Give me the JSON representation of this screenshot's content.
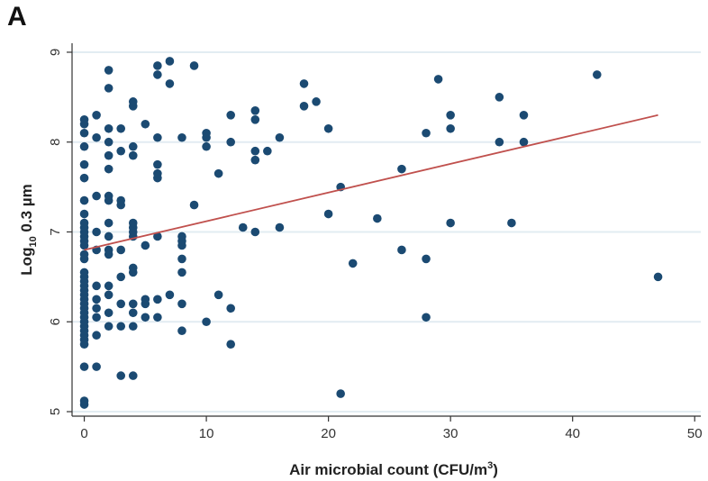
{
  "panel_label": "A",
  "chart_data": {
    "type": "scatter",
    "title": "",
    "xlabel": "Air microbial count (CFU/m",
    "xlabel_superscript": "3",
    "xlabel_suffix": ")",
    "ylabel_prefix": "Log",
    "ylabel_subscript": "10",
    "ylabel_suffix": " 0.3 µm",
    "xlim": [
      -1,
      50.5
    ],
    "ylim": [
      4.95,
      9.1
    ],
    "x_ticks": [
      0,
      10,
      20,
      30,
      40,
      50
    ],
    "y_ticks": [
      5,
      6,
      7,
      8,
      9
    ],
    "grid": "horizontal",
    "colors": {
      "points": "#1b4a72",
      "fit_line": "#c0504d",
      "grid": "#e2ecf2",
      "axis": "#333333"
    },
    "fit_line": {
      "x": [
        0,
        47
      ],
      "y": [
        6.8,
        8.3
      ]
    },
    "points": [
      [
        0,
        5.08
      ],
      [
        0,
        5.12
      ],
      [
        0,
        5.5
      ],
      [
        0,
        5.75
      ],
      [
        0,
        5.8
      ],
      [
        0,
        5.85
      ],
      [
        0,
        5.9
      ],
      [
        0,
        5.95
      ],
      [
        0,
        6.0
      ],
      [
        0,
        6.05
      ],
      [
        0,
        6.1
      ],
      [
        0,
        6.15
      ],
      [
        0,
        6.2
      ],
      [
        0,
        6.25
      ],
      [
        0,
        6.3
      ],
      [
        0,
        6.35
      ],
      [
        0,
        6.4
      ],
      [
        0,
        6.45
      ],
      [
        0,
        6.5
      ],
      [
        0,
        6.55
      ],
      [
        0,
        6.7
      ],
      [
        0,
        6.75
      ],
      [
        0,
        6.85
      ],
      [
        0,
        6.9
      ],
      [
        0,
        6.95
      ],
      [
        0,
        7.0
      ],
      [
        0,
        7.05
      ],
      [
        0,
        7.1
      ],
      [
        0,
        7.2
      ],
      [
        0,
        7.35
      ],
      [
        0,
        7.6
      ],
      [
        0,
        7.75
      ],
      [
        0,
        7.95
      ],
      [
        0,
        8.1
      ],
      [
        0,
        8.2
      ],
      [
        0,
        8.25
      ],
      [
        1,
        5.5
      ],
      [
        1,
        5.85
      ],
      [
        1,
        6.05
      ],
      [
        1,
        6.15
      ],
      [
        1,
        6.25
      ],
      [
        1,
        6.4
      ],
      [
        1,
        6.8
      ],
      [
        1,
        7.0
      ],
      [
        1,
        7.4
      ],
      [
        1,
        8.05
      ],
      [
        1,
        8.3
      ],
      [
        2,
        5.95
      ],
      [
        2,
        6.1
      ],
      [
        2,
        6.3
      ],
      [
        2,
        6.4
      ],
      [
        2,
        6.75
      ],
      [
        2,
        6.8
      ],
      [
        2,
        6.95
      ],
      [
        2,
        7.1
      ],
      [
        2,
        7.35
      ],
      [
        2,
        7.4
      ],
      [
        2,
        7.7
      ],
      [
        2,
        7.85
      ],
      [
        2,
        8.0
      ],
      [
        2,
        8.15
      ],
      [
        2,
        8.6
      ],
      [
        2,
        8.8
      ],
      [
        3,
        5.4
      ],
      [
        3,
        5.95
      ],
      [
        3,
        6.2
      ],
      [
        3,
        6.5
      ],
      [
        3,
        6.8
      ],
      [
        3,
        7.3
      ],
      [
        3,
        7.35
      ],
      [
        3,
        7.9
      ],
      [
        3,
        8.15
      ],
      [
        4,
        5.4
      ],
      [
        4,
        5.95
      ],
      [
        4,
        6.1
      ],
      [
        4,
        6.2
      ],
      [
        4,
        6.55
      ],
      [
        4,
        6.6
      ],
      [
        4,
        6.95
      ],
      [
        4,
        7.0
      ],
      [
        4,
        7.05
      ],
      [
        4,
        7.1
      ],
      [
        4,
        7.85
      ],
      [
        4,
        7.95
      ],
      [
        4,
        8.4
      ],
      [
        4,
        8.45
      ],
      [
        5,
        6.05
      ],
      [
        5,
        6.2
      ],
      [
        5,
        6.25
      ],
      [
        5,
        6.85
      ],
      [
        5,
        8.2
      ],
      [
        6,
        6.05
      ],
      [
        6,
        6.25
      ],
      [
        6,
        6.95
      ],
      [
        6,
        7.6
      ],
      [
        6,
        7.65
      ],
      [
        6,
        7.75
      ],
      [
        6,
        8.05
      ],
      [
        6,
        8.75
      ],
      [
        6,
        8.85
      ],
      [
        7,
        6.3
      ],
      [
        7,
        8.65
      ],
      [
        7,
        8.9
      ],
      [
        8,
        5.9
      ],
      [
        8,
        6.2
      ],
      [
        8,
        6.55
      ],
      [
        8,
        6.7
      ],
      [
        8,
        6.85
      ],
      [
        8,
        6.9
      ],
      [
        8,
        6.95
      ],
      [
        8,
        8.05
      ],
      [
        9,
        7.3
      ],
      [
        9,
        8.85
      ],
      [
        10,
        6.0
      ],
      [
        10,
        7.95
      ],
      [
        10,
        8.05
      ],
      [
        10,
        8.1
      ],
      [
        11,
        6.3
      ],
      [
        11,
        7.65
      ],
      [
        12,
        5.75
      ],
      [
        12,
        6.15
      ],
      [
        12,
        8.0
      ],
      [
        12,
        8.3
      ],
      [
        13,
        7.05
      ],
      [
        14,
        7.0
      ],
      [
        14,
        7.8
      ],
      [
        14,
        7.9
      ],
      [
        14,
        8.25
      ],
      [
        14,
        8.35
      ],
      [
        15,
        7.9
      ],
      [
        16,
        7.05
      ],
      [
        16,
        8.05
      ],
      [
        18,
        8.4
      ],
      [
        18,
        8.65
      ],
      [
        19,
        8.45
      ],
      [
        20,
        7.2
      ],
      [
        20,
        8.15
      ],
      [
        21,
        5.2
      ],
      [
        21,
        7.5
      ],
      [
        22,
        6.65
      ],
      [
        24,
        7.15
      ],
      [
        26,
        6.8
      ],
      [
        26,
        7.7
      ],
      [
        28,
        6.05
      ],
      [
        28,
        6.7
      ],
      [
        28,
        8.1
      ],
      [
        29,
        8.7
      ],
      [
        30,
        7.1
      ],
      [
        30,
        8.15
      ],
      [
        30,
        8.3
      ],
      [
        34,
        8.0
      ],
      [
        34,
        8.5
      ],
      [
        35,
        7.1
      ],
      [
        36,
        8.0
      ],
      [
        36,
        8.3
      ],
      [
        42,
        8.75
      ],
      [
        47,
        6.5
      ]
    ]
  }
}
